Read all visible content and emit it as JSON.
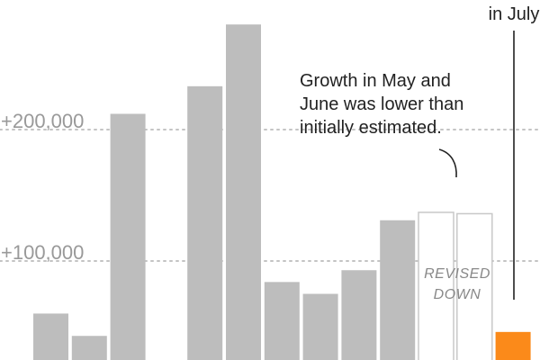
{
  "chart_data": {
    "type": "bar",
    "title": "",
    "xlabel": "",
    "ylabel": "",
    "ylim": [
      0,
      290000
    ],
    "yticks": [
      {
        "value": 100000,
        "label": "+100,000"
      },
      {
        "value": 200000,
        "label": "+200,000"
      }
    ],
    "grid": true,
    "values": [
      60000,
      43000,
      212000,
      17000,
      233000,
      280000,
      84000,
      75000,
      93000,
      131000,
      137000,
      136000,
      46000
    ],
    "bar_styles": [
      "normal",
      "normal",
      "normal",
      "normal",
      "normal",
      "normal",
      "normal",
      "normal",
      "normal",
      "normal",
      "revised",
      "revised",
      "highlight"
    ],
    "colors": {
      "normal": "#bdbdbd",
      "revised_stroke": "#c8c8c8",
      "highlight": "#fb8a1a"
    },
    "annotations": {
      "revised_note": [
        "Growth in May and",
        "June was lower than",
        "initially estimated."
      ],
      "revised_label": [
        "REVISED",
        "DOWN"
      ],
      "highlight_note": "in July"
    }
  }
}
